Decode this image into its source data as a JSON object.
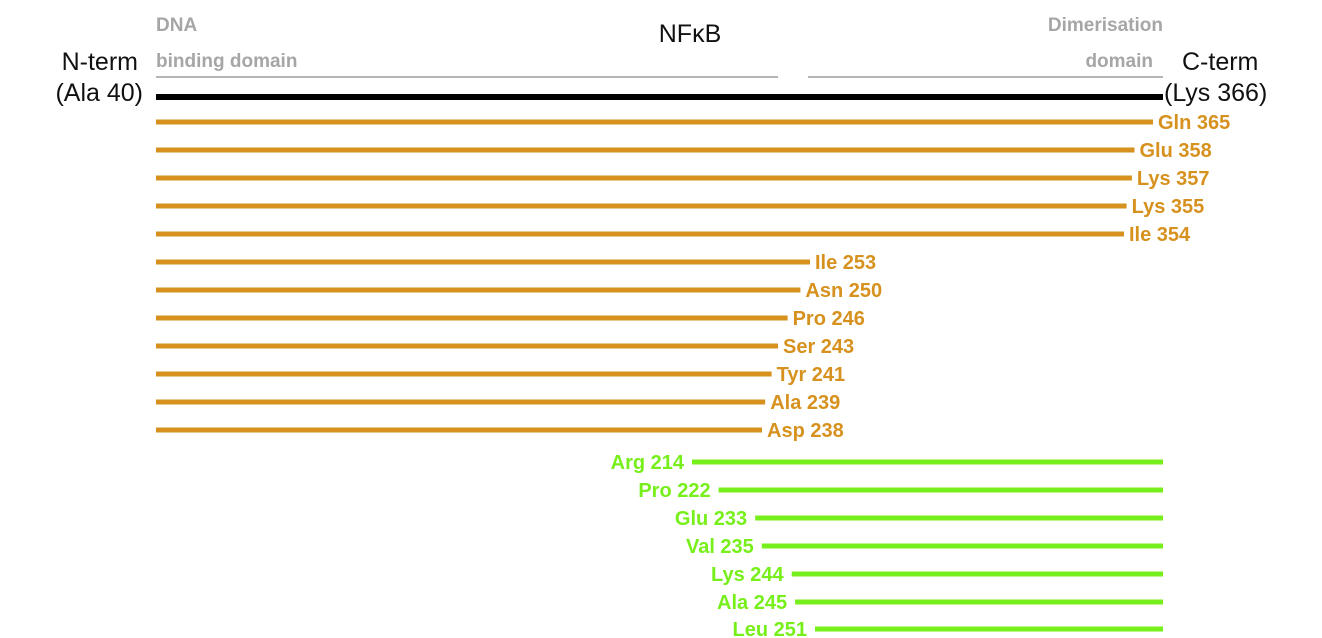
{
  "title": "NFκB",
  "colors": {
    "full_length": "#000000",
    "c_truncations": "#d7911e",
    "n_truncations": "#77ef1a",
    "domain_bar": "#b5b5b5",
    "domain_text": "#a6a6a6"
  },
  "n_term": {
    "line1": "N-term",
    "line2": "(Ala 40)",
    "residue": 40
  },
  "c_term": {
    "line1": "C-term",
    "line2": "(Lys 366)",
    "residue": 366
  },
  "domains": [
    {
      "name": "dna-binding",
      "line1": "DNA",
      "line2": "binding domain"
    },
    {
      "name": "dimerisation",
      "line1": "Dimerisation",
      "line2": "domain"
    }
  ],
  "c_truncations": [
    {
      "label": "Gln 365",
      "end": 365
    },
    {
      "label": "Glu 358",
      "end": 358
    },
    {
      "label": "Lys 357",
      "end": 357
    },
    {
      "label": "Lys 355",
      "end": 355
    },
    {
      "label": "Ile 354",
      "end": 354
    },
    {
      "label": "Ile 253",
      "end": 253
    },
    {
      "label": "Asn 250",
      "end": 250
    },
    {
      "label": "Pro 246",
      "end": 246
    },
    {
      "label": "Ser 243",
      "end": 243
    },
    {
      "label": "Tyr 241",
      "end": 241
    },
    {
      "label": "Ala 239",
      "end": 239
    },
    {
      "label": "Asp 238",
      "end": 238
    }
  ],
  "n_truncations": [
    {
      "label": "Arg 214",
      "start": 214
    },
    {
      "label": "Pro 222",
      "start": 222
    },
    {
      "label": "Glu 233",
      "start": 233
    },
    {
      "label": "Val 235",
      "start": 235
    },
    {
      "label": "Lys 244",
      "start": 244
    },
    {
      "label": "Ala 245",
      "start": 245
    },
    {
      "label": "Leu 251",
      "start": 251
    }
  ]
}
